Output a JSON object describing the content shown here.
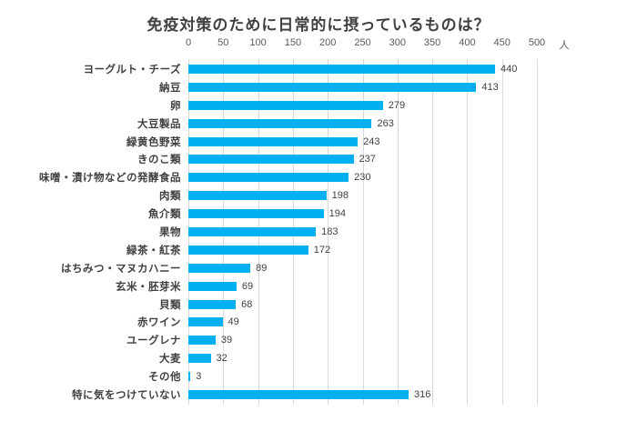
{
  "chart_data": {
    "type": "bar",
    "orientation": "horizontal",
    "title": "免疫対策のために日常的に摂っているものは？",
    "unit_label": "人",
    "categories": [
      "ヨーグルト・チーズ",
      "納豆",
      "卵",
      "大豆製品",
      "緑黄色野菜",
      "きのこ類",
      "味噌・漬け物などの発酵食品",
      "肉類",
      "魚介類",
      "果物",
      "緑茶・紅茶",
      "はちみつ・マヌカハニー",
      "玄米・胚芽米",
      "貝類",
      "赤ワイン",
      "ユーグレナ",
      "大麦",
      "その他",
      "特に気をつけていない"
    ],
    "values": [
      440,
      413,
      279,
      263,
      243,
      237,
      230,
      198,
      194,
      183,
      172,
      89,
      69,
      68,
      49,
      39,
      32,
      3,
      316
    ],
    "x_ticks": [
      0,
      50,
      100,
      150,
      200,
      250,
      300,
      350,
      400,
      450,
      500
    ],
    "xlim": [
      0,
      500
    ],
    "grid": true,
    "legend": false,
    "colors": {
      "bar": "#00b0f0",
      "gridline": "#d9d9d9",
      "title_text": "#404040",
      "category_text": "#404040",
      "value_text": "#404040",
      "tick_text": "#595959"
    }
  }
}
